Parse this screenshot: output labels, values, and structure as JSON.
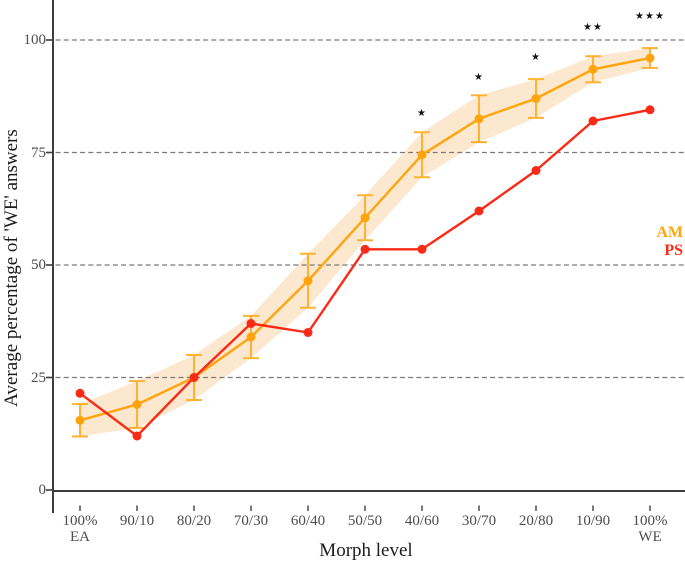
{
  "chart_data": {
    "type": "line",
    "title": "",
    "xlabel": "Morph level",
    "ylabel": "Average percentage of 'WE' answers",
    "categories": [
      "100%\nEA",
      "90/10",
      "80/20",
      "70/30",
      "60/40",
      "50/50",
      "40/60",
      "30/70",
      "20/80",
      "10/90",
      "100%\nWE"
    ],
    "y_ticks": [
      "0",
      "25",
      "50",
      "75",
      "100"
    ],
    "y_tick_values": [
      0,
      25,
      50,
      75,
      100
    ],
    "ylim": [
      0,
      108
    ],
    "grid": "horizontal dashed lines at 25, 50, 75, 100",
    "legend_position": "middle-right",
    "series": [
      {
        "name": "AM",
        "color": "#FFA40D",
        "values": [
          15.5,
          19,
          25,
          34,
          46.5,
          60.5,
          74.5,
          82.5,
          87,
          93.5,
          96
        ],
        "errors": [
          3.6,
          5.2,
          5,
          4.7,
          6,
          5,
          5,
          5.2,
          4.3,
          2.9,
          2.2
        ],
        "has_error_bars": true,
        "errorbar_color": "#FFB232",
        "band": true,
        "band_color": "#FCE8CF"
      },
      {
        "name": "PS",
        "color": "#FA2B16",
        "values": [
          21.5,
          12,
          25,
          37,
          35,
          53.5,
          53.5,
          62,
          71,
          82,
          84.5
        ],
        "errors": null,
        "has_error_bars": false,
        "band": false
      }
    ],
    "significance": [
      "",
      "",
      "",
      "",
      "",
      "",
      "*",
      "*",
      "*",
      "**",
      "***"
    ],
    "colors": {
      "grid": "#7a7a7a",
      "spine": "#3d3d3d",
      "tick_text": "#4d4d4d",
      "title_text": "#1c1c1c",
      "star": "#141414",
      "background": "#ffffff"
    }
  },
  "legend": {
    "items": [
      {
        "label": "AM",
        "color": "#FFA40D"
      },
      {
        "label": "PS",
        "color": "#FA2B16"
      }
    ]
  }
}
